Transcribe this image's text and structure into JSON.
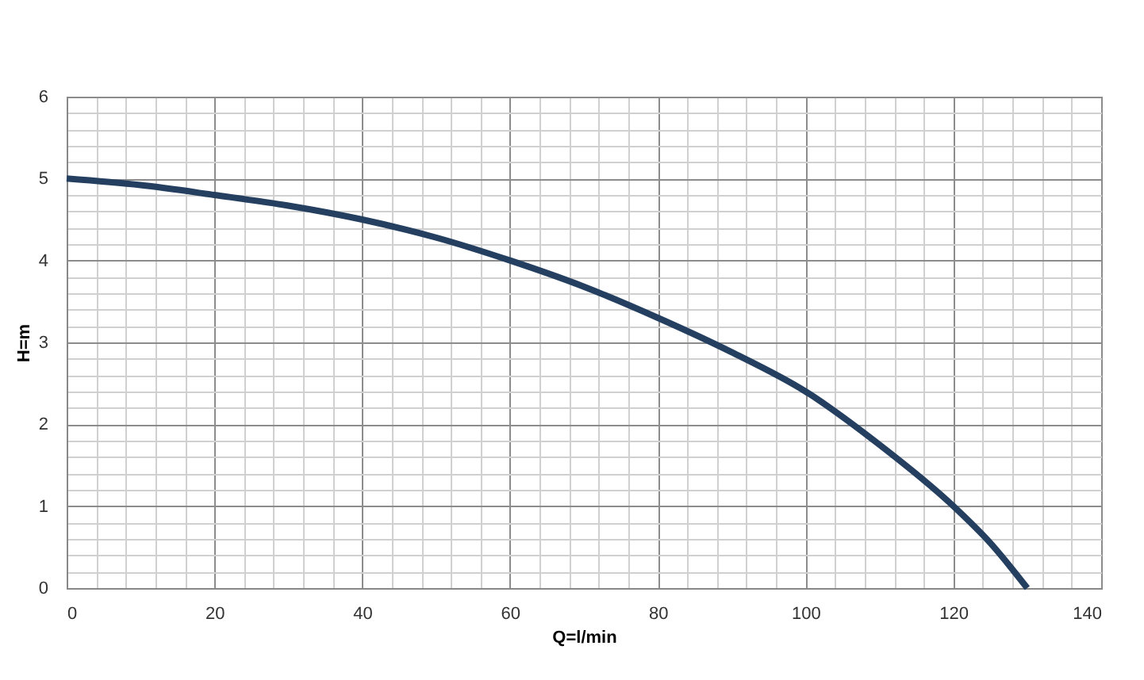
{
  "chart_data": {
    "type": "line",
    "xlabel": "Q=l/min",
    "ylabel": "H=m",
    "x": [
      0,
      10,
      20,
      30,
      40,
      50,
      60,
      70,
      80,
      90,
      100,
      110,
      120,
      125,
      130
    ],
    "series": [
      {
        "color": "#243f60",
        "values": [
          5,
          4.92,
          4.8,
          4.67,
          4.5,
          4.28,
          4.0,
          3.68,
          3.3,
          2.88,
          2.4,
          1.75,
          1.0,
          0.55,
          0
        ]
      }
    ],
    "xlim": [
      0,
      140
    ],
    "ylim": [
      0,
      6
    ],
    "xticks": [
      0,
      20,
      40,
      60,
      80,
      100,
      120,
      140
    ],
    "yticks": [
      0,
      1,
      2,
      3,
      4,
      5,
      6
    ],
    "grid": true,
    "marker": "none",
    "line_style": "solid"
  }
}
